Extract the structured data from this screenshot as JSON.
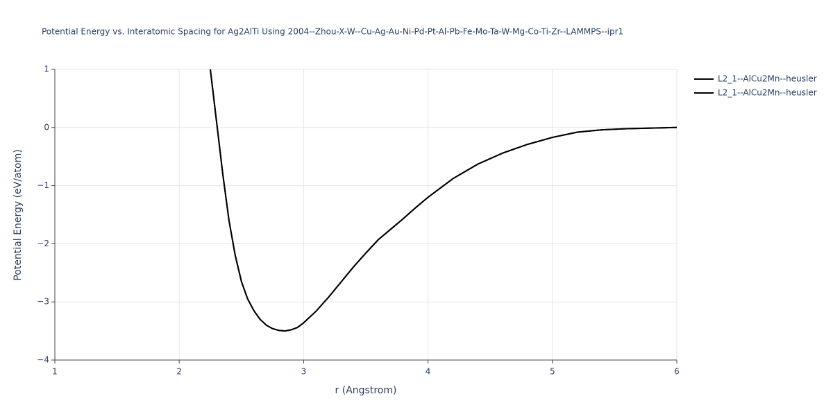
{
  "chart_data": {
    "type": "line",
    "title": "Potential Energy vs. Interatomic Spacing for Ag2AlTi Using 2004--Zhou-X-W--Cu-Ag-Au-Ni-Pd-Pt-Al-Pb-Fe-Mo-Ta-W-Mg-Co-Ti-Zr--LAMMPS--ipr1",
    "x_label": "r (Angstrom)",
    "y_label": "Potential Energy (eV/atom)",
    "x": [
      2.25,
      2.3,
      2.35,
      2.4,
      2.45,
      2.5,
      2.55,
      2.6,
      2.65,
      2.7,
      2.75,
      2.8,
      2.85,
      2.9,
      2.95,
      3.0,
      3.1,
      3.2,
      3.3,
      3.4,
      3.5,
      3.6,
      3.7,
      3.8,
      3.9,
      4.0,
      4.2,
      4.4,
      4.6,
      4.8,
      5.0,
      5.2,
      5.4,
      5.6,
      5.8,
      6.0
    ],
    "series": [
      {
        "name": "L2_1--AlCu2Mn--heusler",
        "color": "#000000",
        "values": [
          1.0,
          0.1,
          -0.8,
          -1.6,
          -2.2,
          -2.65,
          -2.95,
          -3.15,
          -3.3,
          -3.4,
          -3.46,
          -3.49,
          -3.5,
          -3.48,
          -3.44,
          -3.36,
          -3.16,
          -2.92,
          -2.66,
          -2.4,
          -2.16,
          -1.93,
          -1.75,
          -1.57,
          -1.38,
          -1.2,
          -0.88,
          -0.63,
          -0.44,
          -0.29,
          -0.17,
          -0.08,
          -0.04,
          -0.02,
          -0.01,
          0.0
        ]
      },
      {
        "name": "L2_1--AlCu2Mn--heusler",
        "color": "#000000",
        "values": [
          1.0,
          0.1,
          -0.8,
          -1.6,
          -2.2,
          -2.65,
          -2.95,
          -3.15,
          -3.3,
          -3.4,
          -3.46,
          -3.49,
          -3.5,
          -3.48,
          -3.44,
          -3.36,
          -3.16,
          -2.92,
          -2.66,
          -2.4,
          -2.16,
          -1.93,
          -1.75,
          -1.57,
          -1.38,
          -1.2,
          -0.88,
          -0.63,
          -0.44,
          -0.29,
          -0.17,
          -0.08,
          -0.04,
          -0.02,
          -0.01,
          0.0
        ]
      }
    ],
    "xlim": [
      1,
      6
    ],
    "xticks": [
      1,
      2,
      3,
      4,
      5,
      6
    ],
    "ylim": [
      -4,
      1
    ],
    "yticks": [
      1,
      0,
      {
        "value": -1,
        "label": "−1"
      },
      {
        "value": -2,
        "label": "−2"
      },
      {
        "value": -3,
        "label": "−3"
      },
      {
        "value": -4,
        "label": "−4"
      }
    ],
    "grid": true,
    "legend": "right"
  }
}
